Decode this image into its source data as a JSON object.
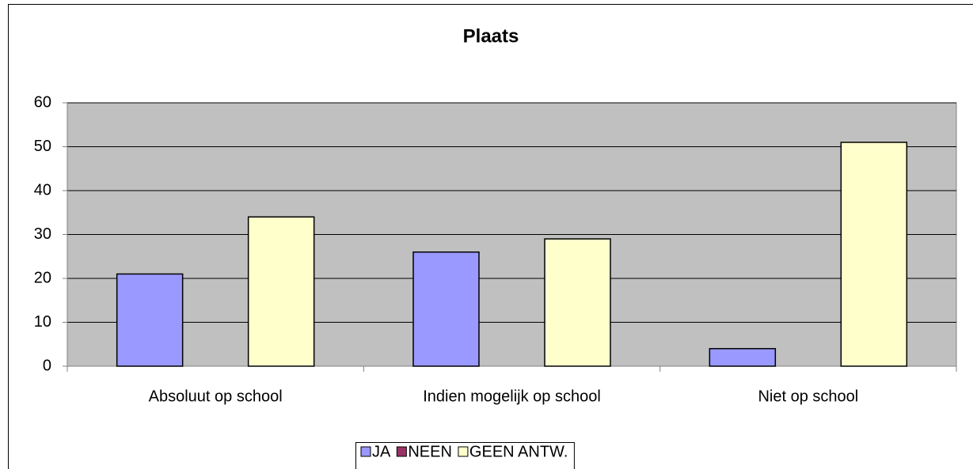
{
  "chart_data": {
    "type": "bar",
    "title": "Plaats",
    "categories": [
      "Absoluut op school",
      "Indien mogelijk op school",
      "Niet op school"
    ],
    "series": [
      {
        "name": "JA",
        "color": "#9999ff",
        "values": [
          21,
          26,
          4
        ]
      },
      {
        "name": "NEEN",
        "color": "#993366",
        "values": [
          0,
          0,
          0
        ]
      },
      {
        "name": "GEEN ANTW.",
        "color": "#ffffcc",
        "values": [
          34,
          29,
          51
        ]
      }
    ],
    "ylim": [
      0,
      60
    ],
    "yticks": [
      0,
      10,
      20,
      30,
      40,
      50,
      60
    ],
    "grid": true,
    "legend": "bottom"
  }
}
